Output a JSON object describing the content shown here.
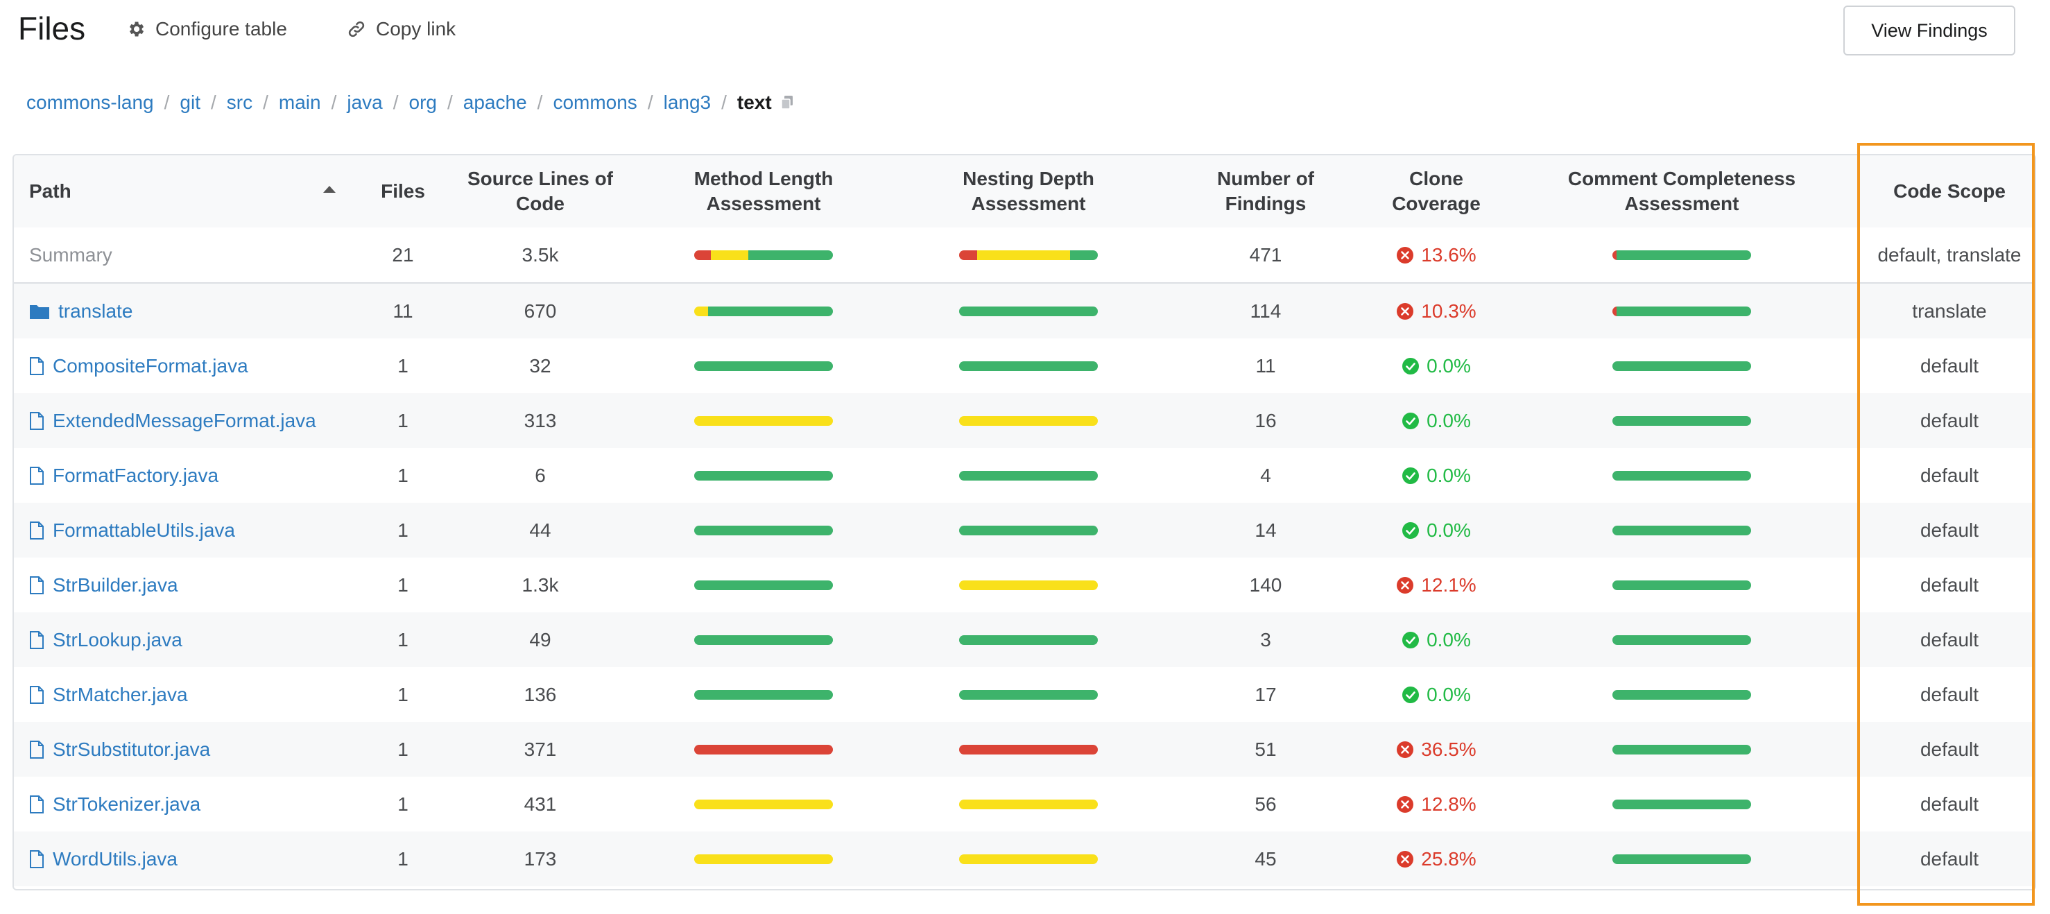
{
  "header": {
    "title": "Files",
    "configure_label": "Configure table",
    "copy_link_label": "Copy link",
    "view_findings_label": "View Findings"
  },
  "breadcrumb": [
    "commons-lang",
    "git",
    "src",
    "main",
    "java",
    "org",
    "apache",
    "commons",
    "lang3"
  ],
  "breadcrumb_current": "text",
  "columns": {
    "path": "Path",
    "files": "Files",
    "sloc": "Source Lines of Code",
    "method_length": "Method Length Assessment",
    "nesting_depth": "Nesting Depth Assessment",
    "findings": "Number of Findings",
    "clone": "Clone Coverage",
    "comment": "Comment Completeness Assessment",
    "scope": "Code Scope"
  },
  "colors": {
    "green": "#3db36b",
    "yellow": "#f9e01a",
    "red": "#db4437",
    "orange_highlight": "#f2961e",
    "link": "#2d7bc0"
  },
  "summary": {
    "label": "Summary",
    "files": "21",
    "sloc": "3.5k",
    "method": [
      0.12,
      0.27,
      0.61
    ],
    "nesting": [
      0.13,
      0.67,
      0.2
    ],
    "findings": "471",
    "clone": "13.6%",
    "clone_ok": false,
    "comment": [
      0.03,
      0.0,
      0.97
    ],
    "scope": "default, translate"
  },
  "rows": [
    {
      "name": "translate",
      "type": "folder",
      "files": "11",
      "sloc": "670",
      "method": [
        0,
        0.1,
        0.9
      ],
      "nesting": [
        0,
        0,
        1
      ],
      "findings": "114",
      "clone": "10.3%",
      "clone_ok": false,
      "comment": [
        0.03,
        0,
        0.97
      ],
      "scope": "translate"
    },
    {
      "name": "CompositeFormat.java",
      "type": "file",
      "files": "1",
      "sloc": "32",
      "method": [
        0,
        0,
        1
      ],
      "nesting": [
        0,
        0,
        1
      ],
      "findings": "11",
      "clone": "0.0%",
      "clone_ok": true,
      "comment": [
        0,
        0,
        1
      ],
      "scope": "default"
    },
    {
      "name": "ExtendedMessageFormat.java",
      "type": "file",
      "files": "1",
      "sloc": "313",
      "method": [
        0,
        1,
        0
      ],
      "nesting": [
        0,
        1,
        0
      ],
      "findings": "16",
      "clone": "0.0%",
      "clone_ok": true,
      "comment": [
        0,
        0,
        1
      ],
      "scope": "default"
    },
    {
      "name": "FormatFactory.java",
      "type": "file",
      "files": "1",
      "sloc": "6",
      "method": [
        0,
        0,
        1
      ],
      "nesting": [
        0,
        0,
        1
      ],
      "findings": "4",
      "clone": "0.0%",
      "clone_ok": true,
      "comment": [
        0,
        0,
        1
      ],
      "scope": "default"
    },
    {
      "name": "FormattableUtils.java",
      "type": "file",
      "files": "1",
      "sloc": "44",
      "method": [
        0,
        0,
        1
      ],
      "nesting": [
        0,
        0,
        1
      ],
      "findings": "14",
      "clone": "0.0%",
      "clone_ok": true,
      "comment": [
        0,
        0,
        1
      ],
      "scope": "default"
    },
    {
      "name": "StrBuilder.java",
      "type": "file",
      "files": "1",
      "sloc": "1.3k",
      "method": [
        0,
        0,
        1
      ],
      "nesting": [
        0,
        1,
        0
      ],
      "findings": "140",
      "clone": "12.1%",
      "clone_ok": false,
      "comment": [
        0,
        0,
        1
      ],
      "scope": "default"
    },
    {
      "name": "StrLookup.java",
      "type": "file",
      "files": "1",
      "sloc": "49",
      "method": [
        0,
        0,
        1
      ],
      "nesting": [
        0,
        0,
        1
      ],
      "findings": "3",
      "clone": "0.0%",
      "clone_ok": true,
      "comment": [
        0,
        0,
        1
      ],
      "scope": "default"
    },
    {
      "name": "StrMatcher.java",
      "type": "file",
      "files": "1",
      "sloc": "136",
      "method": [
        0,
        0,
        1
      ],
      "nesting": [
        0,
        0,
        1
      ],
      "findings": "17",
      "clone": "0.0%",
      "clone_ok": true,
      "comment": [
        0,
        0,
        1
      ],
      "scope": "default"
    },
    {
      "name": "StrSubstitutor.java",
      "type": "file",
      "files": "1",
      "sloc": "371",
      "method": [
        1,
        0,
        0
      ],
      "nesting": [
        1,
        0,
        0
      ],
      "findings": "51",
      "clone": "36.5%",
      "clone_ok": false,
      "comment": [
        0,
        0,
        1
      ],
      "scope": "default"
    },
    {
      "name": "StrTokenizer.java",
      "type": "file",
      "files": "1",
      "sloc": "431",
      "method": [
        0,
        1,
        0
      ],
      "nesting": [
        0,
        1,
        0
      ],
      "findings": "56",
      "clone": "12.8%",
      "clone_ok": false,
      "comment": [
        0,
        0,
        1
      ],
      "scope": "default"
    },
    {
      "name": "WordUtils.java",
      "type": "file",
      "files": "1",
      "sloc": "173",
      "method": [
        0,
        1,
        0
      ],
      "nesting": [
        0,
        1,
        0
      ],
      "findings": "45",
      "clone": "25.8%",
      "clone_ok": false,
      "comment": [
        0,
        0,
        1
      ],
      "scope": "default"
    }
  ]
}
